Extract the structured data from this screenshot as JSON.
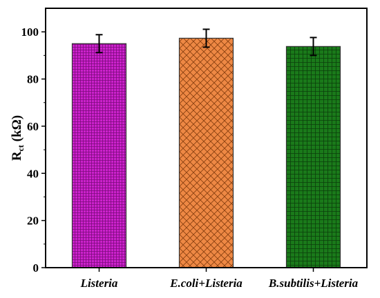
{
  "chart_data": {
    "type": "bar",
    "categories": [
      "Listeria",
      "E.coli+Listeria",
      "B.subtilis+Listeria"
    ],
    "values": [
      95,
      97.3,
      93.8
    ],
    "errors": [
      3.8,
      3.8,
      3.8
    ],
    "ylabel_main": "R",
    "ylabel_sub": "ct",
    "ylabel_unit": " (kΩ)",
    "ylim": [
      0,
      110
    ],
    "yticks": [
      0,
      20,
      40,
      60,
      80,
      100
    ],
    "grid": false,
    "bar_colors": [
      "#cc22cc",
      "#ee8844",
      "#1a7a1a"
    ],
    "bar_patterns": [
      "fine-grid",
      "diagonal-crosshatch",
      "square-grid"
    ]
  }
}
